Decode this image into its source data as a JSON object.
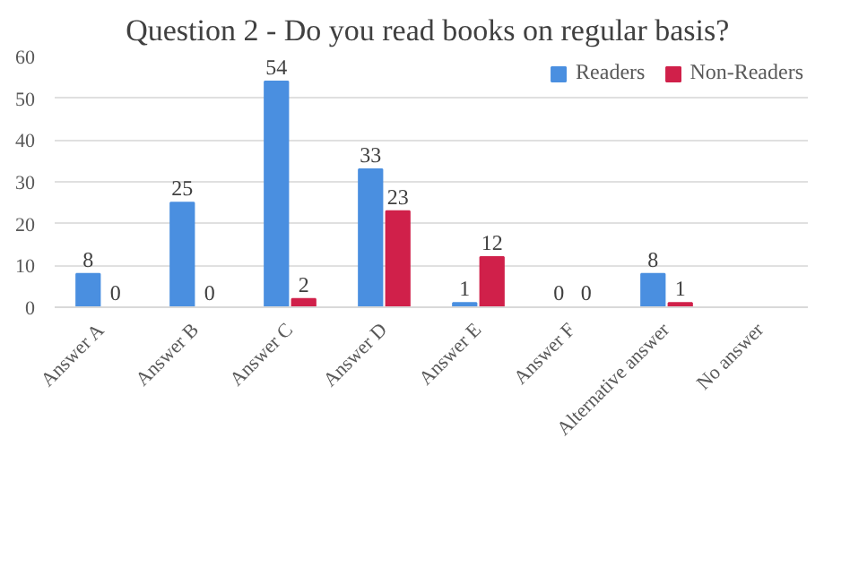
{
  "chart_data": {
    "type": "bar",
    "title": "Question 2 - Do you read books on regular  basis?",
    "categories": [
      "Answer A",
      "Answer B",
      "Answer C",
      "Answer D",
      "Answer E",
      "Answer F",
      "Alternative answer",
      "No answer"
    ],
    "series": [
      {
        "name": "Readers",
        "color": "#4a8fe0",
        "values": [
          8,
          25,
          54,
          33,
          1,
          0,
          8,
          null
        ]
      },
      {
        "name": "Non-Readers",
        "color": "#d0204a",
        "values": [
          0,
          0,
          2,
          23,
          12,
          0,
          1,
          null
        ]
      }
    ],
    "ylim": [
      0,
      60
    ],
    "yticks": [
      0,
      10,
      20,
      30,
      40,
      50,
      60
    ],
    "grid": "y",
    "legend": "top right",
    "data_labels": true
  }
}
